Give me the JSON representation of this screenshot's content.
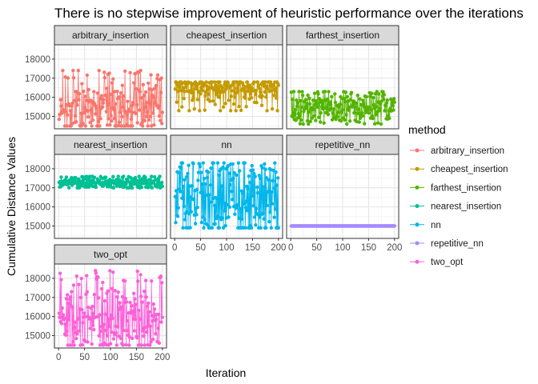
{
  "chart_data": {
    "type": "line",
    "title": "There is no stepwise improvement of heuristic performance over the iterations",
    "xlabel": "Iteration",
    "ylabel": "Cumulative Distance Values",
    "x_range": [
      1,
      200
    ],
    "xlim": [
      -8,
      208
    ],
    "ylim": [
      14350,
      18750
    ],
    "x_ticks": [
      0,
      50,
      100,
      150,
      200
    ],
    "y_ticks": [
      15000,
      16000,
      17000,
      18000
    ],
    "grid": true,
    "facet_layout": "3 columns, shared axes",
    "legend": {
      "title": "method",
      "position": "right"
    },
    "series": [
      {
        "name": "arbitrary_insertion",
        "color": "#F8766D",
        "n": 200,
        "baseline": 14500,
        "max": 17400,
        "values_sample": [
          15300,
          14700,
          15900,
          15100,
          16200,
          14900,
          15500,
          16800,
          15000,
          15700
        ]
      },
      {
        "name": "cheapest_insertion",
        "color": "#C49A00",
        "n": 200,
        "baseline": 15300,
        "max": 16800,
        "values_sample": [
          16600,
          16500,
          16700,
          15900,
          16600,
          16400,
          16700,
          15600,
          16500,
          16600
        ]
      },
      {
        "name": "farthest_insertion",
        "color": "#53B400",
        "n": 200,
        "baseline": 14600,
        "max": 16300,
        "values_sample": [
          15400,
          15100,
          15800,
          14900,
          15500,
          16100,
          15200,
          15000,
          15600,
          15300
        ]
      },
      {
        "name": "nearest_insertion",
        "color": "#00C094",
        "n": 200,
        "baseline": 17000,
        "max": 17600,
        "values_sample": [
          17300,
          17100,
          17400,
          17200,
          17500,
          17100,
          17300,
          17200,
          17400,
          17100
        ]
      },
      {
        "name": "nn",
        "color": "#00B6EB",
        "n": 200,
        "baseline": 14900,
        "max": 18300,
        "values_sample": [
          16500,
          15100,
          17800,
          15600,
          18200,
          15000,
          16900,
          15300,
          17500,
          15800
        ]
      },
      {
        "name": "repetitive_nn",
        "color": "#A58AFF",
        "n": 200,
        "baseline": 15000,
        "max": 15000,
        "values_sample": [
          15000,
          15000,
          15000,
          15000,
          15000,
          15000,
          15000,
          15000,
          15000,
          15000
        ]
      },
      {
        "name": "two_opt",
        "color": "#FB61D7",
        "n": 200,
        "baseline": 14500,
        "max": 18400,
        "values_sample": [
          15800,
          14900,
          16300,
          15400,
          17200,
          14700,
          16000,
          15600,
          16800,
          15100
        ]
      }
    ]
  }
}
